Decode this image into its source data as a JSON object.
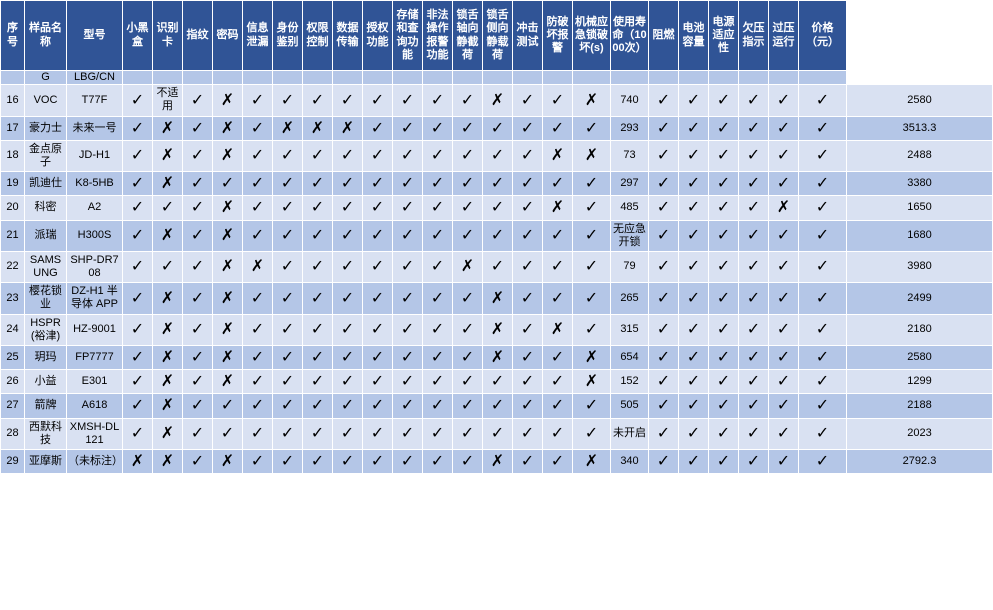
{
  "headers": [
    "序号",
    "样品名称",
    "型号",
    "小黑盒",
    "识别卡",
    "指纹",
    "密码",
    "信息泄漏",
    "身份鉴别",
    "权限控制",
    "数据传输",
    "授权功能",
    "存储和查询功能",
    "非法操作报警功能",
    "锁舌轴向静截荷",
    "锁舌侧向静载荷",
    "冲击测试",
    "防破坏报警",
    "机械应急锁破坏(s)",
    "使用寿命（1000次）",
    "阻燃",
    "电池容量",
    "电源适应性",
    "欠压指示",
    "过压运行",
    "价格（元）"
  ],
  "gapRow": [
    "",
    "G",
    "LBG/CN",
    "",
    "",
    "",
    "",
    "",
    "",
    "",
    "",
    "",
    "",
    "",
    "",
    "",
    "",
    "",
    "",
    "",
    "",
    "",
    "",
    "",
    "",
    ""
  ],
  "rows": [
    {
      "shade": "light",
      "seq": "16",
      "name": "VOC",
      "model": "T77F",
      "cells": [
        "✓",
        "不适用",
        "✓",
        "✗",
        "✓",
        "✓",
        "✓",
        "✓",
        "✓",
        "✓",
        "✓",
        "✓",
        "✗",
        "✓",
        "✓",
        "✗",
        "740",
        "✓",
        "✓",
        "✓",
        "✓",
        "✓",
        "✓"
      ],
      "price": "2580"
    },
    {
      "shade": "dark",
      "seq": "17",
      "name": "豪力士",
      "model": "未来一号",
      "cells": [
        "✓",
        "✗",
        "✓",
        "✗",
        "✓",
        "✗",
        "✗",
        "✗",
        "✓",
        "✓",
        "✓",
        "✓",
        "✓",
        "✓",
        "✓",
        "✓",
        "293",
        "✓",
        "✓",
        "✓",
        "✓",
        "✓",
        "✓"
      ],
      "price": "3513.3"
    },
    {
      "shade": "light",
      "seq": "18",
      "name": "金点原子",
      "model": "JD-H1",
      "cells": [
        "✓",
        "✗",
        "✓",
        "✗",
        "✓",
        "✓",
        "✓",
        "✓",
        "✓",
        "✓",
        "✓",
        "✓",
        "✓",
        "✓",
        "✗",
        "✗",
        "73",
        "✓",
        "✓",
        "✓",
        "✓",
        "✓",
        "✓"
      ],
      "price": "2488"
    },
    {
      "shade": "dark",
      "seq": "19",
      "name": "凯迪仕",
      "model": "K8-5HB",
      "cells": [
        "✓",
        "✗",
        "✓",
        "✓",
        "✓",
        "✓",
        "✓",
        "✓",
        "✓",
        "✓",
        "✓",
        "✓",
        "✓",
        "✓",
        "✓",
        "✓",
        "297",
        "✓",
        "✓",
        "✓",
        "✓",
        "✓",
        "✓"
      ],
      "price": "3380"
    },
    {
      "shade": "light",
      "seq": "20",
      "name": "科密",
      "model": "A2",
      "cells": [
        "✓",
        "✓",
        "✓",
        "✗",
        "✓",
        "✓",
        "✓",
        "✓",
        "✓",
        "✓",
        "✓",
        "✓",
        "✓",
        "√",
        "✗",
        "✓",
        "485",
        "✓",
        "✓",
        "✓",
        "✓",
        "✗",
        "✓"
      ],
      "price": "1650"
    },
    {
      "shade": "dark",
      "seq": "21",
      "name": "派瑞",
      "model": "H300S",
      "cells": [
        "✓",
        "✗",
        "✓",
        "✗",
        "✓",
        "✓",
        "✓",
        "✓",
        "✓",
        "✓",
        "✓",
        "✓",
        "✓",
        "✓",
        "✓",
        "✓",
        "无应急开锁",
        "✓",
        "✓",
        "✓",
        "✓",
        "✓",
        "✓"
      ],
      "price": "1680"
    },
    {
      "shade": "light",
      "seq": "22",
      "name": "SAMSUNG",
      "model": "SHP-DR708",
      "cells": [
        "✓",
        "✓",
        "✓",
        "✗",
        "✗",
        "✓",
        "✓",
        "✓",
        "✓",
        "✓",
        "✓",
        "✗",
        "✓",
        "✓",
        "✓",
        "✓",
        "79",
        "✓",
        "✓",
        "✓",
        "✓",
        "✓",
        "✓"
      ],
      "price": "3980"
    },
    {
      "shade": "dark",
      "seq": "23",
      "name": "樱花锁业",
      "model": "DZ-H1 半导体 APP",
      "cells": [
        "✓",
        "✗",
        "✓",
        "✗",
        "✓",
        "✓",
        "✓",
        "✓",
        "✓",
        "✓",
        "✓",
        "✓",
        "✗",
        "✓",
        "✓",
        "✓",
        "265",
        "✓",
        "✓",
        "✓",
        "✓",
        "✓",
        "✓"
      ],
      "price": "2499"
    },
    {
      "shade": "light",
      "seq": "24",
      "name": "HSPR(裕津)",
      "model": "HZ-9001",
      "cells": [
        "✓",
        "✗",
        "✓",
        "✗",
        "✓",
        "✓",
        "✓",
        "✓",
        "✓",
        "✓",
        "✓",
        "✓",
        "✗",
        "✓",
        "✗",
        "✓",
        "315",
        "✓",
        "✓",
        "✓",
        "✓",
        "✓",
        "✓"
      ],
      "price": "2180"
    },
    {
      "shade": "dark",
      "seq": "25",
      "name": "玥玛",
      "model": "FP7777",
      "cells": [
        "✓",
        "✗",
        "✓",
        "✗",
        "✓",
        "✓",
        "✓",
        "✓",
        "✓",
        "✓",
        "✓",
        "✓",
        "✗",
        "✓",
        "✓",
        "✗",
        "654",
        "✓",
        "✓",
        "✓",
        "✓",
        "✓",
        "✓"
      ],
      "price": "2580"
    },
    {
      "shade": "light",
      "seq": "26",
      "name": "小益",
      "model": "E301",
      "cells": [
        "✓",
        "✗",
        "✓",
        "✗",
        "✓",
        "✓",
        "✓",
        "✓",
        "✓",
        "✓",
        "✓",
        "✓",
        "✓",
        "✓",
        "✓",
        "✗",
        "152",
        "✓",
        "✓",
        "✓",
        "✓",
        "✓",
        "✓"
      ],
      "price": "1299"
    },
    {
      "shade": "dark",
      "seq": "27",
      "name": "箭牌",
      "model": "A618",
      "cells": [
        "✓",
        "✗",
        "✓",
        "✓",
        "✓",
        "✓",
        "✓",
        "✓",
        "✓",
        "✓",
        "✓",
        "✓",
        "✓",
        "✓",
        "✓",
        "✓",
        "505",
        "✓",
        "✓",
        "✓",
        "✓",
        "✓",
        "✓"
      ],
      "price": "2188"
    },
    {
      "shade": "light",
      "seq": "28",
      "name": "西默科技",
      "model": "XMSH-DL121",
      "cells": [
        "✓",
        "✗",
        "✓",
        "✓",
        "✓",
        "✓",
        "✓",
        "✓",
        "✓",
        "✓",
        "✓",
        "✓",
        "✓",
        "✓",
        "✓",
        "✓",
        "未开启",
        "✓",
        "✓",
        "✓",
        "✓",
        "✓",
        "✓"
      ],
      "price": "2023"
    },
    {
      "shade": "dark",
      "seq": "29",
      "name": "亚摩斯",
      "model": "（未标注）",
      "cells": [
        "✗",
        "✗",
        "✓",
        "✗",
        "✓",
        "✓",
        "✓",
        "✓",
        "✓",
        "✓",
        "✓",
        "✓",
        "✗",
        "✓",
        "✓",
        "✗",
        "340",
        "✓",
        "✓",
        "✓",
        "✓",
        "✓",
        "✓"
      ],
      "price": "2792.3"
    }
  ],
  "symbols": {
    "check": "✓",
    "cross": "✗"
  },
  "colors": {
    "headerBg": "#305496",
    "headerFg": "#ffffff",
    "lightBg": "#d9e1f2",
    "darkBg": "#b4c6e7",
    "border": "#ffffff"
  },
  "font": {
    "baseSize": 11,
    "symbolSize": 16
  }
}
